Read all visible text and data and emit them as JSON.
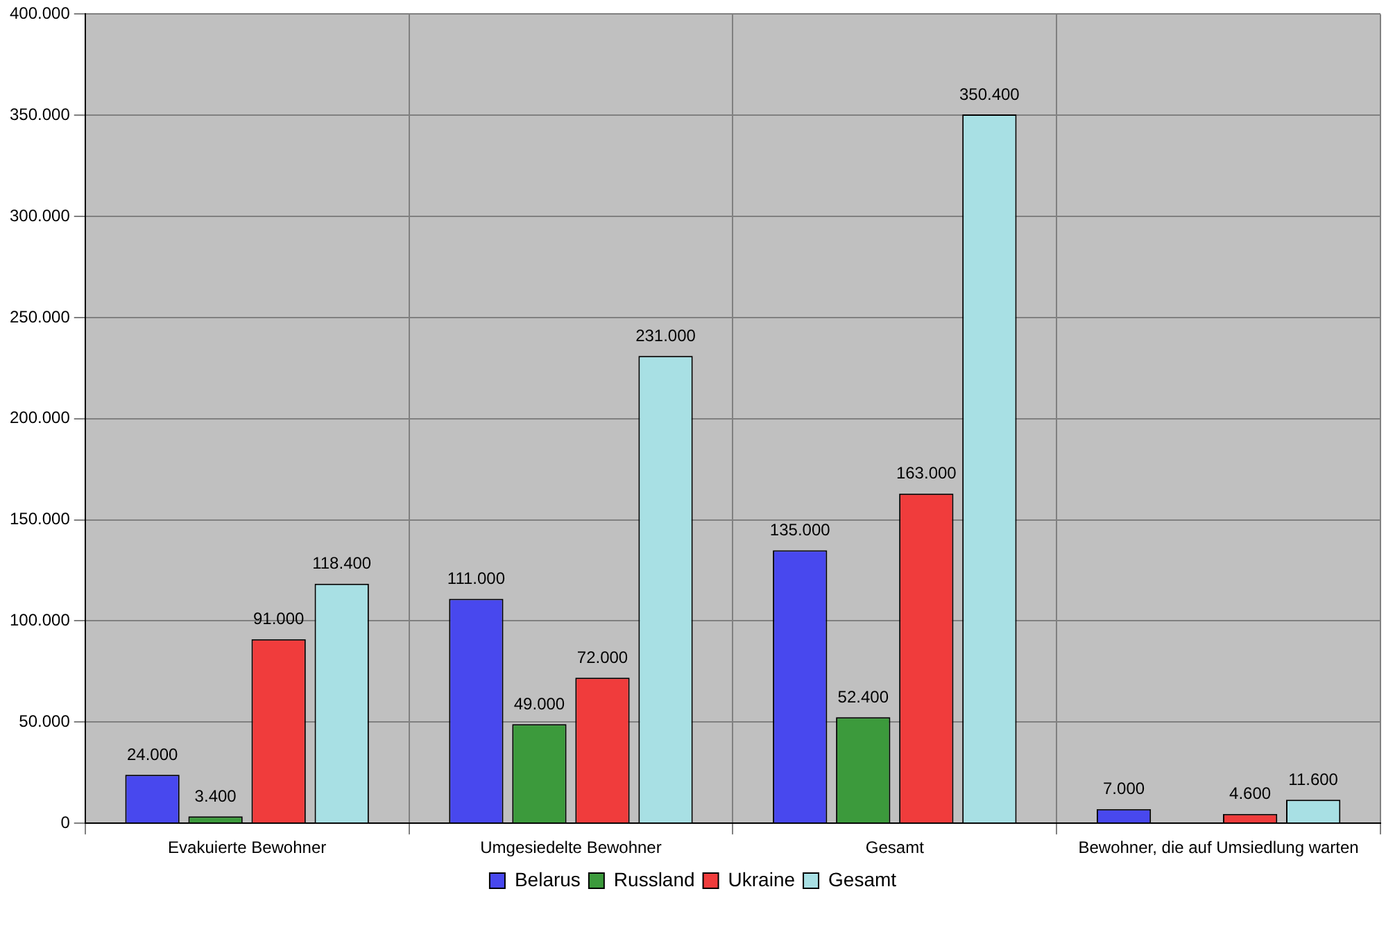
{
  "chart_data": {
    "type": "bar",
    "categories": [
      "Evakuierte Bewohner",
      "Umgesiedelte Bewohner",
      "Gesamt",
      "Bewohner, die auf Umsiedlung warten"
    ],
    "series": [
      {
        "name": "Belarus",
        "color": "#4848ee",
        "values": [
          24000,
          111000,
          135000,
          7000
        ],
        "value_labels": [
          "24.000",
          "111.000",
          "135.000",
          "7.000"
        ]
      },
      {
        "name": "Russland",
        "color": "#3c9a3c",
        "values": [
          3400,
          49000,
          52400,
          null
        ],
        "value_labels": [
          "3.400",
          "49.000",
          "52.400",
          null
        ]
      },
      {
        "name": "Ukraine",
        "color": "#f03c3c",
        "values": [
          91000,
          72000,
          163000,
          4600
        ],
        "value_labels": [
          "91.000",
          "72.000",
          "163.000",
          "4.600"
        ]
      },
      {
        "name": "Gesamt",
        "color": "#a8e0e4",
        "values": [
          118400,
          231000,
          350400,
          11600
        ],
        "value_labels": [
          "118.400",
          "231.000",
          "350.400",
          "11.600"
        ]
      }
    ],
    "ylim": [
      0,
      400000
    ],
    "yticks": [
      0,
      {
        "value": 50000,
        "label": "50.000"
      },
      {
        "value": 100000,
        "label": "100.000"
      },
      {
        "value": 150000,
        "label": "150.000"
      },
      {
        "value": 200000,
        "label": "200.000"
      },
      {
        "value": 250000,
        "label": "250.000"
      },
      {
        "value": 300000,
        "label": "300.000"
      },
      {
        "value": 350000,
        "label": "350.000"
      },
      {
        "value": 400000,
        "label": "400.000"
      }
    ],
    "grid": true,
    "legend": "bottom"
  }
}
